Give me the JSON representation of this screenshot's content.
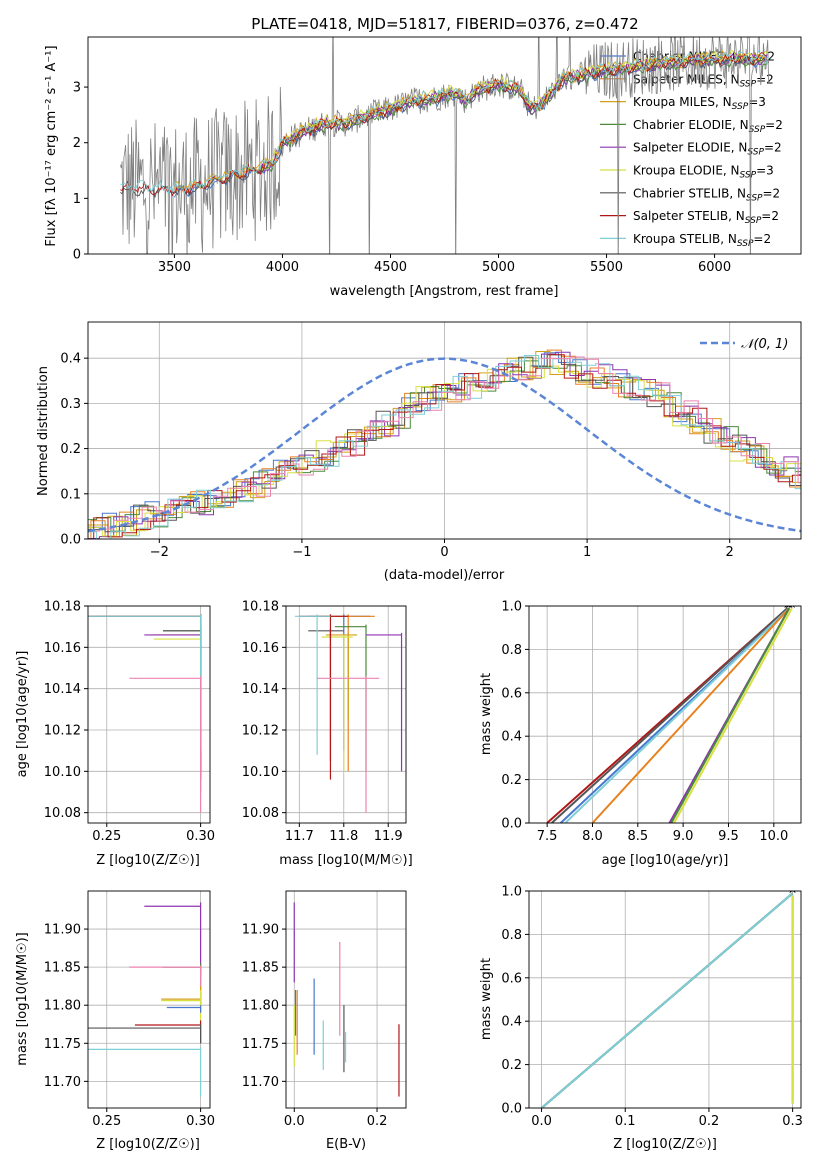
{
  "title": "PLATE=0418, MJD=51817, FIBERID=0376, z=0.472",
  "colors": {
    "chabrier_miles": "#4878cf",
    "salpeter_miles": "#e8821e",
    "kroupa_miles": "#d4a017",
    "chabrier_elodie": "#4a8a3a",
    "salpeter_elodie": "#8e34b0",
    "kroupa_elodie": "#d8e040",
    "chabrier_stelib": "#555555",
    "salpeter_stelib": "#b01818",
    "kroupa_stelib": "#7ecfd6",
    "pink": "#ee82b0",
    "data": "#808080",
    "normal": "#5b86d6",
    "grid": "#b0b0b0"
  },
  "chart_data": [
    {
      "id": "spectrum",
      "type": "line",
      "xlabel": "wavelength [Angstrom, rest frame]",
      "ylabel": "Flux [fλ 10⁻¹⁷ erg cm⁻² s⁻¹ A⁻¹]",
      "xlim": [
        3100,
        6400
      ],
      "ylim": [
        0,
        3.9
      ],
      "xticks": [
        3500,
        4000,
        4500,
        5000,
        5500,
        6000
      ],
      "yticks": [
        0,
        1,
        2,
        3
      ],
      "grid": false,
      "legend": [
        "Chabrier MILES, N_SSP=2",
        "Salpeter MILES, N_SSP=2",
        "Kroupa MILES, N_SSP=3",
        "Chabrier ELODIE, N_SSP=2",
        "Salpeter ELODIE, N_SSP=2",
        "Kroupa ELODIE, N_SSP=3",
        "Chabrier STELIB, N_SSP=2",
        "Salpeter STELIB, N_SSP=2",
        "Kroupa STELIB, N_SSP=2"
      ],
      "legend_position": "right",
      "continuum_knots": [
        [
          3250,
          1.2
        ],
        [
          3500,
          1.15
        ],
        [
          3600,
          1.2
        ],
        [
          3700,
          1.35
        ],
        [
          3800,
          1.45
        ],
        [
          3900,
          1.55
        ],
        [
          3950,
          1.6
        ],
        [
          4000,
          2.0
        ],
        [
          4100,
          2.2
        ],
        [
          4200,
          2.35
        ],
        [
          4300,
          2.35
        ],
        [
          4400,
          2.5
        ],
        [
          4500,
          2.6
        ],
        [
          4600,
          2.75
        ],
        [
          4700,
          2.8
        ],
        [
          4800,
          2.9
        ],
        [
          4850,
          2.75
        ],
        [
          4900,
          2.95
        ],
        [
          5000,
          3.05
        ],
        [
          5100,
          2.95
        ],
        [
          5150,
          2.6
        ],
        [
          5200,
          2.7
        ],
        [
          5300,
          3.15
        ],
        [
          5500,
          3.3
        ],
        [
          5800,
          3.45
        ],
        [
          6000,
          3.5
        ],
        [
          6200,
          3.5
        ]
      ]
    },
    {
      "id": "residuals",
      "type": "step",
      "xlabel": "(data-model)/error",
      "ylabel": "Normed distribution",
      "xlim": [
        -2.5,
        2.5
      ],
      "ylim": [
        0,
        0.48
      ],
      "xticks": [
        -2,
        -1,
        0,
        1,
        2
      ],
      "yticks": [
        0.0,
        0.1,
        0.2,
        0.3,
        0.4
      ],
      "grid": true,
      "legend": [
        "N(0,1)"
      ],
      "legend_position": "upper right",
      "bin_width": 0.1,
      "template": [
        0.01,
        0.01,
        0.012,
        0.015,
        0.02,
        0.025,
        0.03,
        0.035,
        0.045,
        0.055,
        0.06,
        0.07,
        0.08,
        0.09,
        0.1,
        0.11,
        0.12,
        0.13,
        0.145,
        0.16,
        0.175,
        0.19,
        0.2,
        0.215,
        0.235,
        0.255,
        0.275,
        0.295,
        0.31,
        0.32,
        0.33,
        0.34,
        0.35,
        0.36,
        0.37,
        0.38,
        0.385,
        0.39,
        0.38,
        0.37,
        0.36,
        0.35,
        0.34,
        0.33,
        0.32,
        0.3,
        0.28,
        0.26,
        0.24,
        0.22,
        0.2,
        0.185,
        0.17,
        0.155,
        0.14,
        0.13,
        0.12,
        0.11,
        0.1,
        0.09,
        0.085,
        0.08,
        0.075,
        0.07,
        0.065,
        0.06,
        0.055,
        0.05,
        0.045,
        0.04
      ]
    },
    {
      "id": "age_vs_Z",
      "type": "errorbar",
      "xlabel": "Z [log10(Z/Z☉)]",
      "ylabel": "age [log10(age/yr)]",
      "xlim": [
        0.24,
        0.305
      ],
      "ylim": [
        10.075,
        10.18
      ],
      "xticks": [
        0.25,
        0.3
      ],
      "yticks": [
        10.08,
        10.1,
        10.12,
        10.14,
        10.16,
        10.18
      ],
      "grid": true,
      "points": [
        {
          "c": "chabrier_miles",
          "x": 0.3,
          "y": 10.175,
          "xlo": 0.24,
          "xhi": 0.3,
          "ylo": 10.12,
          "yhi": 10.176
        },
        {
          "c": "salpeter_miles",
          "x": 0.3,
          "y": 10.175,
          "xlo": 0.246,
          "xhi": 0.3,
          "ylo": 10.09,
          "yhi": 10.176
        },
        {
          "c": "kroupa_miles",
          "x": 0.3,
          "y": 10.166,
          "xlo": 0.275,
          "xhi": 0.3,
          "ylo": 10.11,
          "yhi": 10.168
        },
        {
          "c": "chabrier_elodie",
          "x": 0.3,
          "y": 10.168,
          "xlo": 0.28,
          "xhi": 0.3,
          "ylo": 10.1,
          "yhi": 10.17
        },
        {
          "c": "salpeter_elodie",
          "x": 0.3,
          "y": 10.166,
          "xlo": 0.27,
          "xhi": 0.3,
          "ylo": 10.12,
          "yhi": 10.168
        },
        {
          "c": "kroupa_elodie",
          "x": 0.3,
          "y": 10.164,
          "xlo": 0.275,
          "xhi": 0.3,
          "ylo": 10.1,
          "yhi": 10.165
        },
        {
          "c": "chabrier_stelib",
          "x": 0.3,
          "y": 10.168,
          "xlo": 0.28,
          "xhi": 0.3,
          "ylo": 10.1,
          "yhi": 10.17
        },
        {
          "c": "salpeter_stelib",
          "x": 0.3,
          "y": 10.175,
          "xlo": 0.24,
          "xhi": 0.3,
          "ylo": 10.096,
          "yhi": 10.176
        },
        {
          "c": "kroupa_stelib",
          "x": 0.3,
          "y": 10.175,
          "xlo": 0.24,
          "xhi": 0.3,
          "ylo": 10.11,
          "yhi": 10.176
        },
        {
          "c": "pink",
          "x": 0.3,
          "y": 10.145,
          "xlo": 0.262,
          "xhi": 0.3,
          "ylo": 10.08,
          "yhi": 10.146
        }
      ]
    },
    {
      "id": "age_vs_mass",
      "type": "errorbar",
      "xlabel": "mass [log10(M/M☉)]",
      "ylabel": "",
      "xlim": [
        11.67,
        11.94
      ],
      "ylim": [
        10.075,
        10.18
      ],
      "xticks": [
        11.7,
        11.8,
        11.9
      ],
      "yticks": [
        10.08,
        10.1,
        10.12,
        10.14,
        10.16,
        10.18
      ],
      "grid": true,
      "points": [
        {
          "c": "chabrier_miles",
          "x": 11.8,
          "y": 10.175,
          "xlo": 11.72,
          "xhi": 11.86,
          "ylo": 10.11,
          "yhi": 10.176
        },
        {
          "c": "salpeter_miles",
          "x": 11.81,
          "y": 10.175,
          "xlo": 11.74,
          "xhi": 11.87,
          "ylo": 10.1,
          "yhi": 10.176
        },
        {
          "c": "kroupa_miles",
          "x": 11.81,
          "y": 10.166,
          "xlo": 11.76,
          "xhi": 11.83,
          "ylo": 10.125,
          "yhi": 10.167
        },
        {
          "c": "chabrier_elodie",
          "x": 11.85,
          "y": 10.17,
          "xlo": 11.78,
          "xhi": 11.85,
          "ylo": 10.1,
          "yhi": 10.171
        },
        {
          "c": "salpeter_elodie",
          "x": 11.93,
          "y": 10.166,
          "xlo": 11.85,
          "xhi": 11.93,
          "ylo": 10.1,
          "yhi": 10.167
        },
        {
          "c": "kroupa_elodie",
          "x": 11.8,
          "y": 10.165,
          "xlo": 11.75,
          "xhi": 11.82,
          "ylo": 10.1,
          "yhi": 10.166
        },
        {
          "c": "chabrier_stelib",
          "x": 11.77,
          "y": 10.168,
          "xlo": 11.72,
          "xhi": 11.8,
          "ylo": 10.105,
          "yhi": 10.169
        },
        {
          "c": "salpeter_stelib",
          "x": 11.77,
          "y": 10.175,
          "xlo": 11.7,
          "xhi": 11.81,
          "ylo": 10.096,
          "yhi": 10.176
        },
        {
          "c": "kroupa_stelib",
          "x": 11.74,
          "y": 10.175,
          "xlo": 11.69,
          "xhi": 11.77,
          "ylo": 10.108,
          "yhi": 10.176
        },
        {
          "c": "pink",
          "x": 11.85,
          "y": 10.145,
          "xlo": 11.74,
          "xhi": 11.88,
          "ylo": 10.08,
          "yhi": 10.146
        }
      ]
    },
    {
      "id": "cum_age",
      "type": "line",
      "xlabel": "age [log10(age/yr)]",
      "ylabel": "mass weight",
      "xlim": [
        7.3,
        10.3
      ],
      "ylim": [
        0,
        1.0
      ],
      "xticks": [
        7.5,
        8.0,
        8.5,
        9.0,
        9.5,
        10.0
      ],
      "yticks": [
        0.0,
        0.2,
        0.4,
        0.6,
        0.8,
        1.0
      ],
      "grid": true,
      "lines": [
        {
          "c": "salpeter_stelib",
          "x": [
            7.5,
            10.15
          ],
          "y": [
            0,
            0.99
          ]
        },
        {
          "c": "chabrier_stelib",
          "x": [
            7.55,
            10.15
          ],
          "y": [
            0,
            0.99
          ]
        },
        {
          "c": "chabrier_miles",
          "x": [
            7.65,
            10.17
          ],
          "y": [
            0,
            0.99
          ]
        },
        {
          "c": "kroupa_stelib",
          "x": [
            7.7,
            10.17
          ],
          "y": [
            0,
            0.99
          ]
        },
        {
          "c": "salpeter_miles",
          "x": [
            8.0,
            10.17
          ],
          "y": [
            0,
            0.99
          ]
        },
        {
          "c": "salpeter_elodie",
          "x": [
            8.85,
            10.17
          ],
          "y": [
            0,
            0.99
          ]
        },
        {
          "c": "chabrier_elodie",
          "x": [
            8.87,
            10.17
          ],
          "y": [
            0,
            0.99
          ]
        },
        {
          "c": "kroupa_elodie",
          "x": [
            8.9,
            10.2
          ],
          "y": [
            0,
            0.99
          ]
        }
      ]
    },
    {
      "id": "mass_vs_Z",
      "type": "errorbar",
      "xlabel": "Z [log10(Z/Z☉)]",
      "ylabel": "mass [log10(M/M☉)]",
      "xlim": [
        0.24,
        0.305
      ],
      "ylim": [
        11.665,
        11.95
      ],
      "xticks": [
        0.25,
        0.3
      ],
      "yticks": [
        11.7,
        11.75,
        11.8,
        11.85,
        11.9
      ],
      "grid": true,
      "points": [
        {
          "c": "salpeter_elodie",
          "x": 0.3,
          "y": 11.93,
          "xlo": 0.27,
          "xhi": 0.3,
          "ylo": 11.84,
          "yhi": 11.935
        },
        {
          "c": "chabrier_elodie",
          "x": 0.3,
          "y": 11.85,
          "xlo": 0.28,
          "xhi": 0.3,
          "ylo": 11.8,
          "yhi": 11.855
        },
        {
          "c": "pink",
          "x": 0.3,
          "y": 11.85,
          "xlo": 0.262,
          "xhi": 0.3,
          "ylo": 11.8,
          "yhi": 11.852
        },
        {
          "c": "kroupa_miles",
          "x": 0.3,
          "y": 11.808,
          "xlo": 0.279,
          "xhi": 0.3,
          "ylo": 11.79,
          "yhi": 11.825
        },
        {
          "c": "kroupa_elodie",
          "x": 0.3,
          "y": 11.806,
          "xlo": 0.279,
          "xhi": 0.3,
          "ylo": 11.78,
          "yhi": 11.82
        },
        {
          "c": "chabrier_miles",
          "x": 0.3,
          "y": 11.797,
          "xlo": 0.282,
          "xhi": 0.3,
          "ylo": 11.79,
          "yhi": 11.8
        },
        {
          "c": "salpeter_stelib",
          "x": 0.3,
          "y": 11.774,
          "xlo": 0.265,
          "xhi": 0.3,
          "ylo": 11.75,
          "yhi": 11.78
        },
        {
          "c": "chabrier_stelib",
          "x": 0.3,
          "y": 11.77,
          "xlo": 0.24,
          "xhi": 0.3,
          "ylo": 11.75,
          "yhi": 11.775
        },
        {
          "c": "kroupa_stelib",
          "x": 0.3,
          "y": 11.742,
          "xlo": 0.24,
          "xhi": 0.3,
          "ylo": 11.68,
          "yhi": 11.745
        }
      ]
    },
    {
      "id": "mass_vs_EBV",
      "type": "errorbar",
      "xlabel": "E(B-V)",
      "ylabel": "",
      "xlim": [
        -0.02,
        0.27
      ],
      "ylim": [
        11.665,
        11.95
      ],
      "xticks": [
        0.0,
        0.2
      ],
      "yticks": [
        11.7,
        11.75,
        11.8,
        11.85,
        11.9
      ],
      "grid": true,
      "vbars": [
        {
          "c": "salpeter_elodie",
          "x": 0.0,
          "ylo": 11.83,
          "yhi": 11.935
        },
        {
          "c": "kroupa_elodie",
          "x": 0.0,
          "ylo": 11.72,
          "yhi": 11.8
        },
        {
          "c": "chabrier_elodie",
          "x": 0.003,
          "ylo": 11.76,
          "yhi": 11.82
        },
        {
          "c": "salpeter_miles",
          "x": 0.007,
          "ylo": 11.735,
          "yhi": 11.82
        },
        {
          "c": "chabrier_miles",
          "x": 0.048,
          "ylo": 11.735,
          "yhi": 11.835
        },
        {
          "c": "kroupa_stelib",
          "x": 0.07,
          "ylo": 11.715,
          "yhi": 11.78
        },
        {
          "c": "pink",
          "x": 0.11,
          "ylo": 11.76,
          "yhi": 11.883
        },
        {
          "c": "chabrier_stelib",
          "x": 0.12,
          "ylo": 11.712,
          "yhi": 11.8
        },
        {
          "c": "kroupa_stelib",
          "x": 0.124,
          "ylo": 11.725,
          "yhi": 11.765
        },
        {
          "c": "salpeter_stelib",
          "x": 0.253,
          "ylo": 11.68,
          "yhi": 11.775
        }
      ]
    },
    {
      "id": "cum_Z",
      "type": "line",
      "xlabel": "Z [log10(Z/Z☉)]",
      "ylabel": "mass weight",
      "xlim": [
        -0.015,
        0.31
      ],
      "ylim": [
        0,
        1.0
      ],
      "xticks": [
        0.0,
        0.1,
        0.2,
        0.3
      ],
      "yticks": [
        0.0,
        0.2,
        0.4,
        0.6,
        0.8,
        1.0
      ],
      "grid": true,
      "lines": [
        {
          "c": "chabrier_miles",
          "x": [
            0.0,
            0.3
          ],
          "y": [
            0,
            0.99
          ]
        },
        {
          "c": "chabrier_elodie",
          "x": [
            0.0,
            0.3
          ],
          "y": [
            0,
            0.99
          ]
        },
        {
          "c": "chabrier_stelib",
          "x": [
            0.0,
            0.3
          ],
          "y": [
            0,
            0.99
          ]
        },
        {
          "c": "kroupa_stelib",
          "x": [
            0.0,
            0.3
          ],
          "y": [
            0,
            0.99
          ]
        }
      ],
      "vline": {
        "c": "kroupa_elodie",
        "x": 0.3,
        "y": [
          0.02,
          0.98
        ]
      }
    }
  ]
}
